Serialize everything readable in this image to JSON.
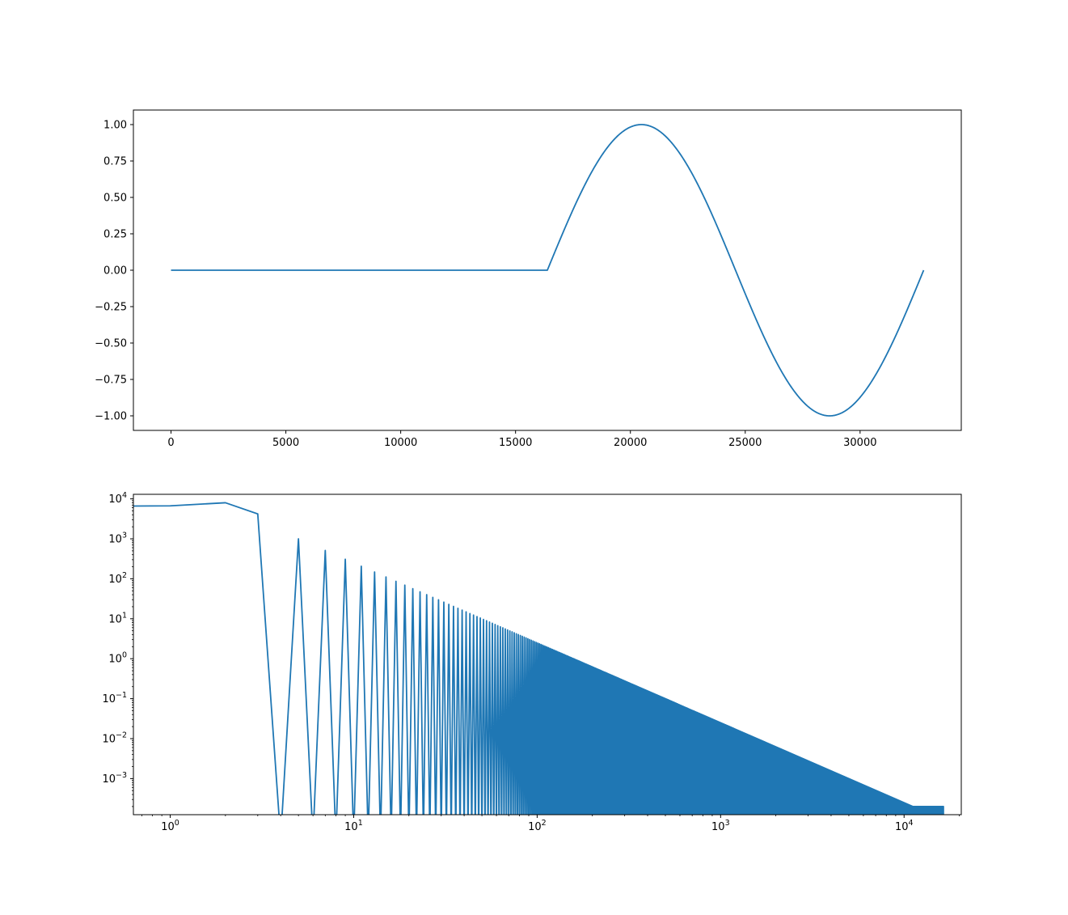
{
  "chart_data": [
    {
      "type": "line",
      "title": "",
      "xlabel": "",
      "ylabel": "",
      "grid": false,
      "x_scale": "linear",
      "y_scale": "linear",
      "xlim": [
        -1638,
        34406
      ],
      "ylim": [
        -1.1,
        1.1
      ],
      "x_ticks": [
        0,
        5000,
        10000,
        15000,
        20000,
        25000,
        30000
      ],
      "x_tick_labels": [
        "0",
        "5000",
        "10000",
        "15000",
        "20000",
        "25000",
        "30000"
      ],
      "y_ticks": [
        1.0,
        0.75,
        0.5,
        0.25,
        0.0,
        -0.25,
        -0.5,
        -0.75,
        -1.0
      ],
      "y_tick_labels": [
        "1.00",
        "0.75",
        "0.50",
        "0.25",
        "0.00",
        "−0.25",
        "−0.50",
        "−0.75",
        "−1.00"
      ],
      "series": [
        {
          "color": "#1f77b4",
          "x": [
            0,
            16384,
            17408,
            18432,
            19456,
            20480,
            21504,
            22528,
            23552,
            24576,
            25600,
            26624,
            27648,
            28672,
            29696,
            30720,
            31744,
            32768
          ],
          "values": [
            0.0,
            0.0,
            0.383,
            0.707,
            0.924,
            1.0,
            0.924,
            0.707,
            0.383,
            0.0,
            -0.383,
            -0.707,
            -0.924,
            -1.0,
            -0.924,
            -0.707,
            -0.383,
            0.0
          ]
        }
      ]
    },
    {
      "type": "line",
      "title": "",
      "xlabel": "",
      "ylabel": "",
      "grid": false,
      "x_scale": "log",
      "y_scale": "log",
      "xlim": [
        0.63,
        20500
      ],
      "ylim": [
        0.000125,
        13000
      ],
      "x_ticks": [
        1,
        10,
        100,
        1000,
        10000
      ],
      "x_tick_labels": [
        {
          "base": "10",
          "exp": "0"
        },
        {
          "base": "10",
          "exp": "1"
        },
        {
          "base": "10",
          "exp": "2"
        },
        {
          "base": "10",
          "exp": "3"
        },
        {
          "base": "10",
          "exp": "4"
        }
      ],
      "y_ticks": [
        10000,
        1000,
        100,
        10,
        1,
        0.1,
        0.01,
        0.001
      ],
      "y_tick_labels": [
        {
          "base": "10",
          "exp": "4"
        },
        {
          "base": "10",
          "exp": "3"
        },
        {
          "base": "10",
          "exp": "2"
        },
        {
          "base": "10",
          "exp": "1"
        },
        {
          "base": "10",
          "exp": "0"
        },
        {
          "base": "10",
          "exp": "−1"
        },
        {
          "base": "10",
          "exp": "−2"
        },
        {
          "base": "10",
          "exp": "−3"
        }
      ],
      "series": [
        {
          "color": "#1f77b4",
          "x": [
            0,
            1,
            2,
            3,
            4
          ],
          "values": [
            6600,
            6700,
            8000,
            4200,
            1e-07
          ]
        }
      ],
      "harmonic_peaks": {
        "description": "odd-index peaks k = 5, 7, 9, ... up to 16384, each dropping to near zero between",
        "first_k": 5,
        "last_k": 16383,
        "step": 2,
        "peak_at_k5": 1000,
        "decay_exponent": 2,
        "floor_at_end": 0.0002
      }
    }
  ]
}
